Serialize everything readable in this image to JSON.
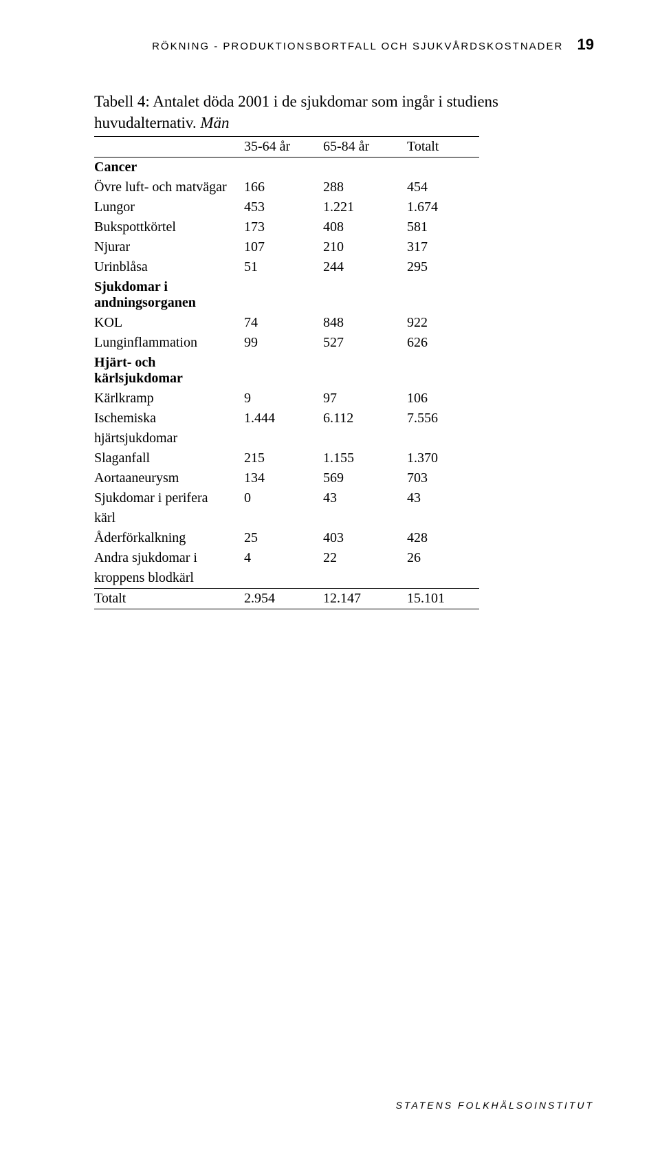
{
  "header": {
    "running_title": "RÖKNING - PRODUKTIONSBORTFALL OCH SJUKVÅRDSKOSTNADER",
    "page_number": "19"
  },
  "caption": {
    "prefix": "Tabell 4:  Antalet döda 2001 i de sjukdomar som ingår i studiens huvudalternativ. ",
    "italic": "Män"
  },
  "table": {
    "columns": [
      "",
      "35-64 år",
      "65-84 år",
      "Totalt"
    ],
    "groups": [
      {
        "title": "Cancer",
        "rows": [
          {
            "label": "Övre luft- och matvägar",
            "c1": "166",
            "c2": "288",
            "c3": "454"
          },
          {
            "label": "Lungor",
            "c1": "453",
            "c2": "1.221",
            "c3": "1.674"
          },
          {
            "label": "Bukspottkörtel",
            "c1": "173",
            "c2": "408",
            "c3": "581"
          },
          {
            "label": "Njurar",
            "c1": "107",
            "c2": "210",
            "c3": "317"
          },
          {
            "label": "Urinblåsa",
            "c1": "51",
            "c2": "244",
            "c3": "295"
          }
        ]
      },
      {
        "title": "Sjukdomar i",
        "title_line2": "andningsorganen",
        "rows": [
          {
            "label": "KOL",
            "c1": "74",
            "c2": "848",
            "c3": "922"
          },
          {
            "label": "Lunginflammation",
            "c1": "99",
            "c2": "527",
            "c3": "626"
          }
        ]
      },
      {
        "title": "Hjärt- och",
        "title_line2": "kärlsjukdomar",
        "rows": [
          {
            "label": "Kärlkramp",
            "c1": "9",
            "c2": "97",
            "c3": "106"
          },
          {
            "label": "Ischemiska",
            "label_line2": "hjärtsjukdomar",
            "c1": "1.444",
            "c2": "6.112",
            "c3": "7.556"
          },
          {
            "label": "Slaganfall",
            "c1": "215",
            "c2": "1.155",
            "c3": "1.370"
          },
          {
            "label": "Aortaaneurysm",
            "c1": "134",
            "c2": "569",
            "c3": "703"
          },
          {
            "label": "Sjukdomar i perifera",
            "label_line2": "kärl",
            "c1": "0",
            "c2": "43",
            "c3": "43"
          },
          {
            "label": "Åderförkalkning",
            "c1": "25",
            "c2": "403",
            "c3": "428"
          },
          {
            "label": "Andra sjukdomar i",
            "label_line2": "kroppens blodkärl",
            "c1": "4",
            "c2": "22",
            "c3": "26"
          }
        ]
      }
    ],
    "total": {
      "label": "Totalt",
      "c1": "2.954",
      "c2": "12.147",
      "c3": "15.101"
    }
  },
  "footer": "STATENS FOLKHÄLSOINSTITUT"
}
